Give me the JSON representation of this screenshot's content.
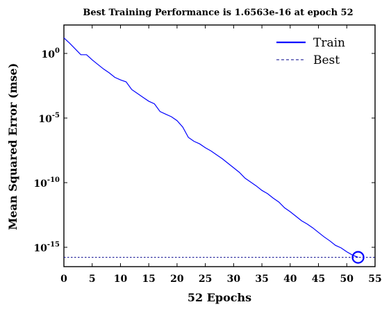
{
  "chart_data": {
    "type": "line",
    "title": "Best Training Performance is 1.6563e-16 at epoch 52",
    "xlabel": "52 Epochs",
    "ylabel": "Mean Squared Error (mse)",
    "xlim": [
      0,
      55
    ],
    "ylim_log10": [
      -16.5,
      2.2
    ],
    "y_scale": "log",
    "xticks": [
      "0",
      "5",
      "10",
      "15",
      "20",
      "25",
      "30",
      "35",
      "40",
      "45",
      "50",
      "55"
    ],
    "yticks": [
      {
        "base": "10",
        "exp": "0",
        "value_log10": 0
      },
      {
        "base": "10",
        "exp": "-5",
        "value_log10": -5
      },
      {
        "base": "10",
        "exp": "-10",
        "value_log10": -10
      },
      {
        "base": "10",
        "exp": "-15",
        "value_log10": -15
      }
    ],
    "legend_position": "top-right",
    "series": [
      {
        "name": "Train",
        "color": "#0000ff",
        "style": "solid",
        "x": [
          0,
          1,
          2,
          3,
          4,
          5,
          6,
          7,
          8,
          9,
          10,
          11,
          12,
          13,
          14,
          15,
          16,
          17,
          18,
          19,
          20,
          21,
          22,
          23,
          24,
          25,
          26,
          27,
          28,
          29,
          30,
          31,
          32,
          33,
          34,
          35,
          36,
          37,
          38,
          39,
          40,
          41,
          42,
          43,
          44,
          45,
          46,
          47,
          48,
          49,
          50,
          51,
          52
        ],
        "y_log10": [
          1.2,
          0.8,
          0.35,
          -0.1,
          -0.1,
          -0.5,
          -0.85,
          -1.2,
          -1.5,
          -1.85,
          -2.05,
          -2.2,
          -2.8,
          -3.1,
          -3.4,
          -3.7,
          -3.9,
          -4.5,
          -4.7,
          -4.9,
          -5.2,
          -5.7,
          -6.5,
          -6.8,
          -7.0,
          -7.3,
          -7.55,
          -7.85,
          -8.15,
          -8.5,
          -8.85,
          -9.2,
          -9.65,
          -9.95,
          -10.25,
          -10.6,
          -10.85,
          -11.2,
          -11.5,
          -11.95,
          -12.25,
          -12.6,
          -12.95,
          -13.2,
          -13.5,
          -13.85,
          -14.2,
          -14.5,
          -14.85,
          -15.05,
          -15.35,
          -15.6,
          -15.78
        ]
      },
      {
        "name": "Best",
        "color": "#00008b",
        "style": "dashed",
        "y_value": "1.6563e-16",
        "y_log10": -15.78
      }
    ],
    "best_marker": {
      "epoch": 52,
      "value": "1.6563e-16"
    }
  }
}
